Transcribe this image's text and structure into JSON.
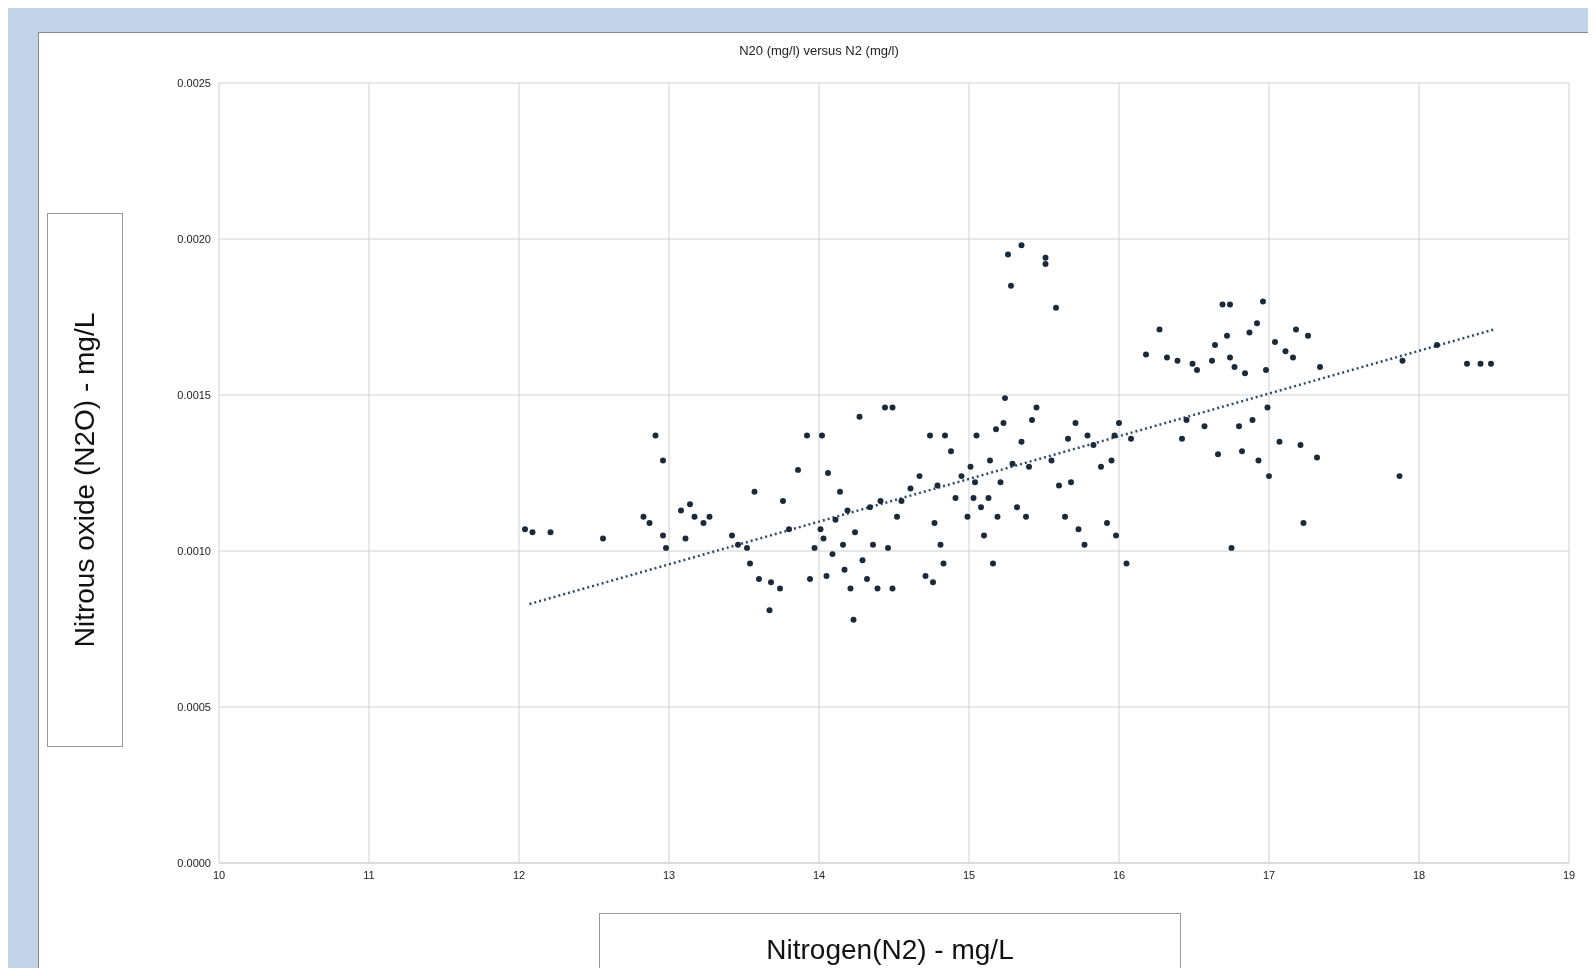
{
  "chart_data": {
    "type": "scatter",
    "title": "N20 (mg/l) versus N2 (mg/l)",
    "xlabel": "Nitrogen(N2) - mg/L",
    "ylabel": "Nitrous oxide (N2O) - mg/L",
    "xlim": [
      10,
      19
    ],
    "xticks": [
      10,
      11,
      12,
      13,
      14,
      15,
      16,
      17,
      18,
      19
    ],
    "ylim": [
      0,
      0.0025
    ],
    "yticks": [
      {
        "value": 0,
        "label": "0.0000"
      },
      {
        "value": 0.0005,
        "label": "0.0005"
      },
      {
        "value": 0.001,
        "label": "0.0010"
      },
      {
        "value": 0.0015,
        "label": "0.0015"
      },
      {
        "value": 0.002,
        "label": "0.0020"
      },
      {
        "value": 0.0025,
        "label": "0.0025"
      }
    ],
    "grid": true,
    "legend": false,
    "marker": "circle",
    "series": [
      {
        "color": "#1b2a3a",
        "x": [
          12.04,
          12.09,
          12.21,
          12.56,
          12.83,
          12.87,
          12.91,
          12.96,
          12.96,
          12.98,
          13.08,
          13.14,
          13.17,
          13.23,
          13.27,
          13.11,
          13.42,
          13.46,
          13.52,
          13.54,
          13.57,
          13.6,
          13.67,
          13.68,
          13.74,
          13.76,
          13.8,
          13.86,
          13.92,
          13.94,
          13.97,
          14.02,
          14.01,
          14.03,
          14.05,
          14.06,
          14.09,
          14.11,
          14.14,
          14.16,
          14.17,
          14.19,
          14.21,
          14.23,
          14.24,
          14.27,
          14.29,
          14.32,
          14.34,
          14.36,
          14.39,
          14.41,
          14.44,
          14.49,
          14.46,
          14.49,
          14.52,
          14.55,
          14.61,
          14.67,
          14.71,
          14.74,
          14.76,
          14.77,
          14.79,
          14.81,
          14.83,
          14.84,
          14.88,
          14.91,
          14.95,
          14.99,
          15.01,
          15.03,
          15.04,
          15.05,
          15.08,
          15.1,
          15.13,
          15.14,
          15.16,
          15.18,
          15.19,
          15.21,
          15.23,
          15.24,
          15.26,
          15.28,
          15.35,
          15.29,
          15.32,
          15.35,
          15.38,
          15.4,
          15.42,
          15.45,
          15.51,
          15.51,
          15.58,
          15.55,
          15.6,
          15.64,
          15.66,
          15.68,
          15.71,
          15.73,
          15.77,
          15.79,
          15.83,
          15.88,
          15.92,
          15.95,
          15.97,
          16.0,
          15.98,
          16.05,
          16.08,
          16.18,
          16.27,
          16.32,
          16.39,
          16.42,
          16.45,
          16.49,
          16.52,
          16.57,
          16.62,
          16.64,
          16.66,
          16.69,
          16.74,
          16.72,
          16.74,
          16.75,
          16.77,
          16.8,
          16.82,
          16.84,
          16.87,
          16.89,
          16.92,
          16.93,
          16.96,
          16.98,
          16.99,
          17.0,
          17.04,
          17.07,
          17.11,
          17.16,
          17.18,
          17.21,
          17.23,
          17.26,
          17.32,
          17.34,
          17.87,
          17.89,
          18.12,
          18.32,
          18.41,
          18.48
        ],
        "values": [
          0.00107,
          0.00106,
          0.00106,
          0.00104,
          0.00111,
          0.00109,
          0.00137,
          0.00129,
          0.00105,
          0.00101,
          0.00113,
          0.00115,
          0.00111,
          0.00109,
          0.00111,
          0.00104,
          0.00105,
          0.00102,
          0.00101,
          0.00096,
          0.00119,
          0.00091,
          0.00081,
          0.0009,
          0.00088,
          0.00116,
          0.00107,
          0.00126,
          0.00137,
          0.00091,
          0.00101,
          0.00137,
          0.00107,
          0.00104,
          0.00092,
          0.00125,
          0.00099,
          0.0011,
          0.00119,
          0.00102,
          0.00094,
          0.00113,
          0.00088,
          0.00078,
          0.00106,
          0.00143,
          0.00097,
          0.00091,
          0.00114,
          0.00102,
          0.00088,
          0.00116,
          0.00146,
          0.00146,
          0.00101,
          0.00088,
          0.00111,
          0.00116,
          0.0012,
          0.00124,
          0.00092,
          0.00137,
          0.0009,
          0.00109,
          0.00121,
          0.00102,
          0.00096,
          0.00137,
          0.00132,
          0.00117,
          0.00124,
          0.00111,
          0.00127,
          0.00117,
          0.00122,
          0.00137,
          0.00114,
          0.00105,
          0.00117,
          0.00129,
          0.00096,
          0.00139,
          0.00111,
          0.00122,
          0.00141,
          0.00149,
          0.00195,
          0.00185,
          0.00198,
          0.00128,
          0.00114,
          0.00135,
          0.00111,
          0.00127,
          0.00142,
          0.00146,
          0.00194,
          0.00192,
          0.00178,
          0.00129,
          0.00121,
          0.00111,
          0.00136,
          0.00122,
          0.00141,
          0.00107,
          0.00102,
          0.00137,
          0.00134,
          0.00127,
          0.00109,
          0.00129,
          0.00137,
          0.00141,
          0.00105,
          0.00096,
          0.00136,
          0.00163,
          0.00171,
          0.00162,
          0.00161,
          0.00136,
          0.00142,
          0.0016,
          0.00158,
          0.0014,
          0.00161,
          0.00166,
          0.00131,
          0.00179,
          0.00179,
          0.00169,
          0.00162,
          0.00101,
          0.00159,
          0.0014,
          0.00132,
          0.00157,
          0.0017,
          0.00142,
          0.00173,
          0.00129,
          0.0018,
          0.00158,
          0.00146,
          0.00124,
          0.00167,
          0.00135,
          0.00164,
          0.00162,
          0.00171,
          0.00134,
          0.00109,
          0.00169,
          0.0013,
          0.00159,
          0.00124,
          0.00161,
          0.00166,
          0.0016,
          0.0016,
          0.0016
        ]
      },
      {
        "type": "line",
        "color": "#2c4a6e",
        "line_style": "dotted",
        "marker": "none",
        "x": [
          12.07,
          18.5
        ],
        "values": [
          0.00083,
          0.00171
        ]
      }
    ]
  }
}
